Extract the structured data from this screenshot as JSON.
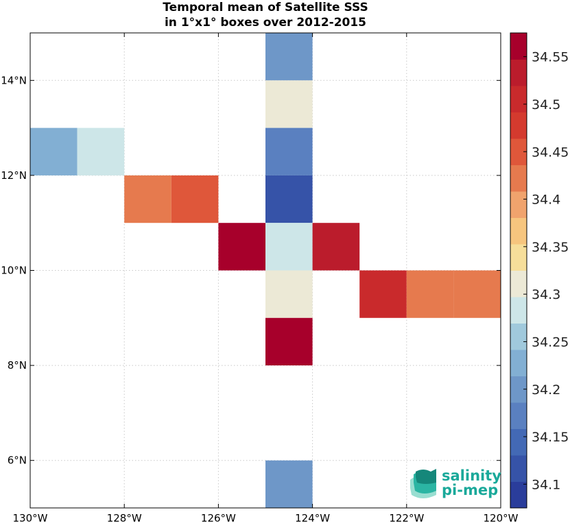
{
  "chart_data": {
    "type": "heatmap",
    "title_line1": "Temporal mean of Satellite SSS",
    "title_line2": "in 1°x1° boxes over 2012-2015",
    "xlim": [
      -130,
      -120
    ],
    "ylim": [
      5,
      15
    ],
    "x_ticks": [
      {
        "value": -130,
        "label": "130°W"
      },
      {
        "value": -128,
        "label": "128°W"
      },
      {
        "value": -126,
        "label": "126°W"
      },
      {
        "value": -124,
        "label": "124°W"
      },
      {
        "value": -122,
        "label": "122°W"
      },
      {
        "value": -120,
        "label": "120°W"
      }
    ],
    "y_ticks": [
      {
        "value": 6,
        "label": "6°N"
      },
      {
        "value": 8,
        "label": "8°N"
      },
      {
        "value": 10,
        "label": "10°N"
      },
      {
        "value": 12,
        "label": "12°N"
      },
      {
        "value": 14,
        "label": "14°N"
      }
    ],
    "grid": true,
    "cells": [
      {
        "lon": -125,
        "lat": 14,
        "value": 34.21
      },
      {
        "lon": -125,
        "lat": 13,
        "value": 34.3
      },
      {
        "lon": -125,
        "lat": 12,
        "value": 34.18
      },
      {
        "lon": -130,
        "lat": 12,
        "value": 34.23
      },
      {
        "lon": -129,
        "lat": 12,
        "value": 34.28
      },
      {
        "lon": -128,
        "lat": 11,
        "value": 34.41
      },
      {
        "lon": -127,
        "lat": 11,
        "value": 34.46
      },
      {
        "lon": -126,
        "lat": 10,
        "value": 34.55
      },
      {
        "lon": -125,
        "lat": 11,
        "value": 34.11
      },
      {
        "lon": -125,
        "lat": 10,
        "value": 34.28
      },
      {
        "lon": -124,
        "lat": 10,
        "value": 34.52
      },
      {
        "lon": -125,
        "lat": 9,
        "value": 34.31
      },
      {
        "lon": -123,
        "lat": 9,
        "value": 34.51
      },
      {
        "lon": -122,
        "lat": 9,
        "value": 34.43
      },
      {
        "lon": -121,
        "lat": 9,
        "value": 34.43
      },
      {
        "lon": -125,
        "lat": 8,
        "value": 34.55
      },
      {
        "lon": -125,
        "lat": 5,
        "value": 34.21
      }
    ],
    "colorbar": {
      "min": 34.075,
      "max": 34.575,
      "ticks": [
        "34.1",
        "34.15",
        "34.2",
        "34.25",
        "34.3",
        "34.35",
        "34.4",
        "34.45",
        "34.5",
        "34.55"
      ],
      "colors": [
        "#2a3d9b",
        "#3653a8",
        "#4369b5",
        "#5a80c0",
        "#6e97c8",
        "#82afd3",
        "#a0c9dc",
        "#cde6e8",
        "#ece9d6",
        "#f6de9a",
        "#f6c57e",
        "#f0a36d",
        "#e67a4e",
        "#df573a",
        "#d43a2e",
        "#c92a2c",
        "#bb1c2c",
        "#a7002b"
      ]
    }
  },
  "logo": {
    "line1": "salinity",
    "line2": "pi-mep"
  }
}
